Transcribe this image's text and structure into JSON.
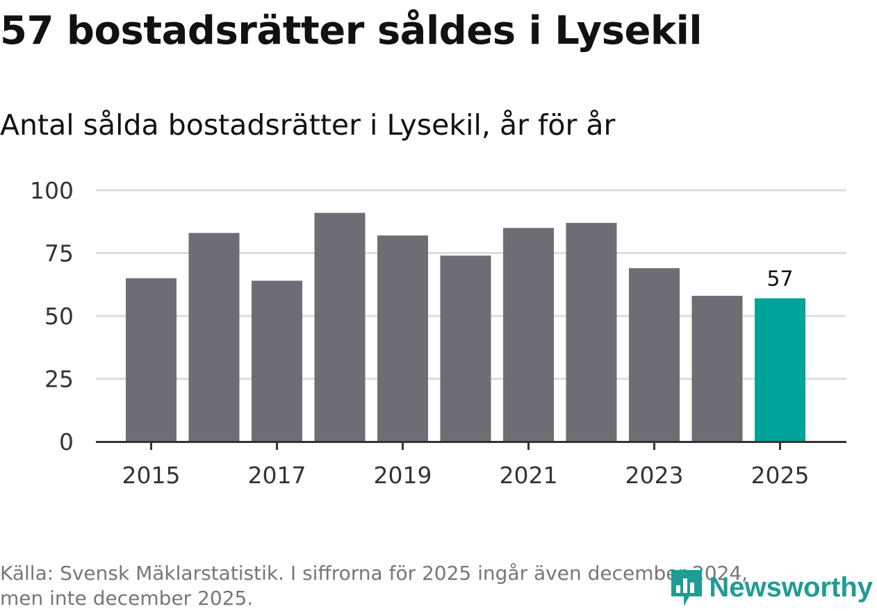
{
  "title": "57 bostadsrätter såldes i Lysekil",
  "subtitle": "Antal sålda bostadsrätter i Lysekil, år för år",
  "footer": {
    "line1": "Källa: Svensk Mäklarstatistik. I siffrorna för 2025 ingår även december 2024,",
    "line2": "men inte december 2025."
  },
  "logo": {
    "text": "Newsworthy",
    "icon": "bar-chart-badge-icon"
  },
  "colors": {
    "bar": "#6e6d73",
    "highlight": "#00a39a",
    "grid": "#dddddd",
    "axis": "#333333",
    "text": "#111111",
    "muted": "#767676"
  },
  "chart_data": {
    "type": "bar",
    "categories": [
      "2015",
      "2016",
      "2017",
      "2018",
      "2019",
      "2020",
      "2021",
      "2022",
      "2023",
      "2024",
      "2025"
    ],
    "values": [
      65,
      83,
      64,
      91,
      82,
      74,
      85,
      87,
      69,
      58,
      57
    ],
    "highlight": "2025",
    "highlight_label": "57",
    "x_tick_labels": [
      "2015",
      "2017",
      "2019",
      "2021",
      "2023",
      "2025"
    ],
    "y_ticks": [
      0,
      25,
      50,
      75,
      100
    ],
    "ylim": [
      0,
      100
    ],
    "xlabel": "",
    "ylabel": "",
    "grid": true
  }
}
